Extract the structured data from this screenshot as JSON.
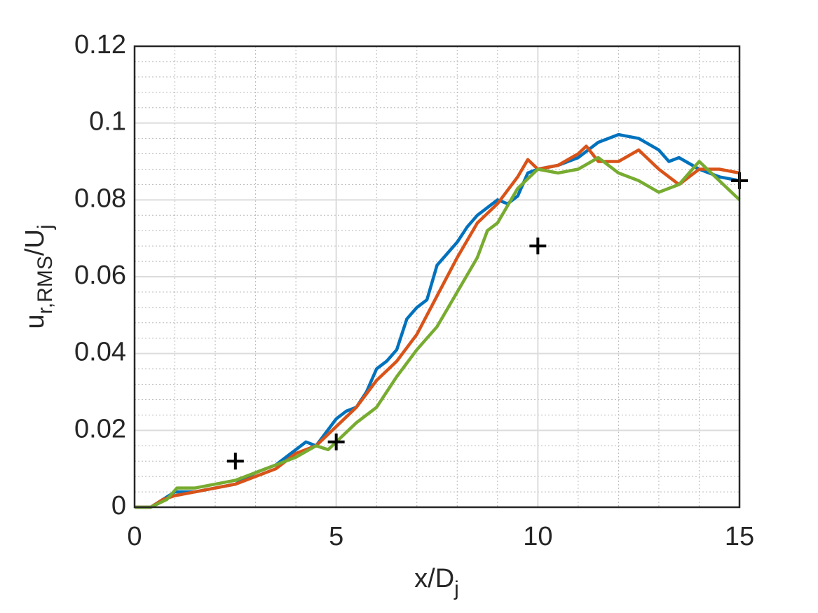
{
  "chart_data": {
    "type": "line",
    "xlabel": [
      "x/D",
      "j"
    ],
    "ylabel": [
      "u",
      "r,RMS",
      "/U",
      "j"
    ],
    "xlim": [
      0,
      15
    ],
    "xticks": [
      0,
      5,
      10,
      15
    ],
    "ylim": [
      0,
      0.12
    ],
    "yticks": [
      0,
      0.02,
      0.04,
      0.06,
      0.08,
      0.1,
      0.12
    ],
    "xminorticks": [
      1,
      2,
      3,
      4,
      6,
      7,
      8,
      9,
      11,
      12,
      13,
      14
    ],
    "yminorticks": [
      0.004,
      0.008,
      0.012,
      0.016,
      0.024,
      0.028,
      0.032,
      0.036,
      0.044,
      0.048,
      0.052,
      0.056,
      0.064,
      0.068,
      0.072,
      0.076,
      0.084,
      0.088,
      0.092,
      0.096,
      0.104,
      0.108,
      0.112,
      0.116
    ],
    "grid": true,
    "minor_grid": true,
    "series": [
      {
        "color": "#0072bd",
        "marker": null,
        "x": [
          0,
          0.4,
          0.7,
          1,
          1.5,
          2,
          2.5,
          3,
          3.5,
          4,
          4.25,
          4.5,
          5,
          5.25,
          5.5,
          5.75,
          6,
          6.25,
          6.5,
          6.75,
          7,
          7.25,
          7.5,
          7.75,
          8,
          8.25,
          8.5,
          8.75,
          9,
          9.25,
          9.5,
          9.75,
          10,
          10.5,
          11,
          11.5,
          12,
          12.5,
          13,
          13.25,
          13.5,
          14,
          14.5,
          15
        ],
        "values": [
          0,
          0,
          0.002,
          0.004,
          0.004,
          0.005,
          0.006,
          0.009,
          0.011,
          0.015,
          0.017,
          0.016,
          0.023,
          0.025,
          0.026,
          0.03,
          0.036,
          0.038,
          0.041,
          0.049,
          0.052,
          0.054,
          0.063,
          0.066,
          0.069,
          0.073,
          0.076,
          0.078,
          0.08,
          0.079,
          0.081,
          0.087,
          0.088,
          0.089,
          0.091,
          0.095,
          0.097,
          0.096,
          0.093,
          0.09,
          0.091,
          0.088,
          0.086,
          0.085
        ]
      },
      {
        "color": "#d95319",
        "marker": null,
        "x": [
          0,
          0.4,
          0.7,
          1,
          1.5,
          2,
          2.5,
          3,
          3.5,
          4,
          4.5,
          5,
          5.5,
          6,
          6.5,
          7,
          7.5,
          8,
          8.5,
          9,
          9.5,
          9.75,
          10,
          10.5,
          11,
          11.2,
          11.5,
          12,
          12.5,
          13,
          13.5,
          14,
          14.5,
          15
        ],
        "values": [
          0,
          0,
          0.002,
          0.003,
          0.004,
          0.005,
          0.006,
          0.008,
          0.01,
          0.014,
          0.016,
          0.021,
          0.026,
          0.033,
          0.038,
          0.045,
          0.055,
          0.065,
          0.074,
          0.079,
          0.086,
          0.0905,
          0.088,
          0.089,
          0.092,
          0.094,
          0.09,
          0.09,
          0.093,
          0.088,
          0.084,
          0.088,
          0.088,
          0.087
        ]
      },
      {
        "color": "#77ac30",
        "marker": null,
        "x": [
          0,
          0.4,
          0.8,
          1.05,
          1.5,
          2,
          2.5,
          3,
          3.5,
          4,
          4.5,
          4.8,
          5,
          5.5,
          6,
          6.5,
          7,
          7.5,
          8,
          8.5,
          8.75,
          9,
          9.5,
          10,
          10.5,
          11,
          11.5,
          12,
          12.5,
          13,
          13.5,
          14,
          14.5,
          15
        ],
        "values": [
          0,
          0,
          0.002,
          0.005,
          0.005,
          0.006,
          0.007,
          0.009,
          0.011,
          0.013,
          0.016,
          0.015,
          0.017,
          0.022,
          0.026,
          0.034,
          0.041,
          0.047,
          0.056,
          0.065,
          0.072,
          0.074,
          0.083,
          0.088,
          0.087,
          0.088,
          0.091,
          0.087,
          0.085,
          0.082,
          0.084,
          0.09,
          0.085,
          0.08
        ]
      },
      {
        "color": "#000000",
        "marker": "+",
        "x": [
          2.5,
          5,
          10,
          15
        ],
        "values": [
          0.012,
          0.017,
          0.068,
          0.085
        ]
      }
    ]
  }
}
